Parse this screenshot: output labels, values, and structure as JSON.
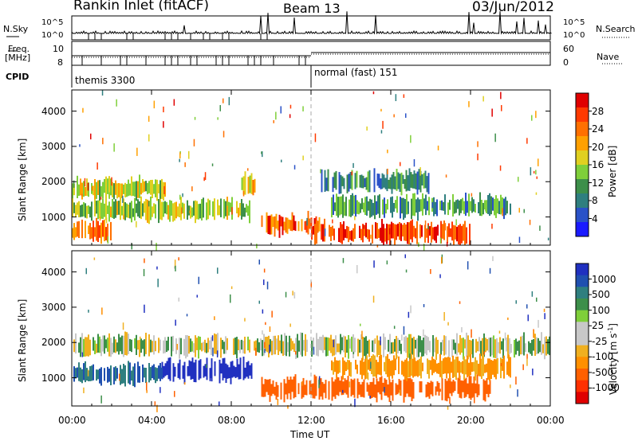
{
  "header": {
    "station_title": "Rankin Inlet (fitACF)",
    "beam": "Beam 13",
    "date": "03/Jun/2012"
  },
  "top_panels": {
    "nsky_label": "N.Sky",
    "nsky_ticks": [
      "10^5",
      "10^0"
    ],
    "nsearch_label": "N.Search",
    "nsearch_ticks": [
      "10^5",
      "10^0"
    ],
    "freq_label": "Freq.",
    "freq_unit": "[MHz]",
    "freq_ticks": [
      "10",
      "8"
    ],
    "nave_label": "Nave",
    "nave_ticks": [
      "60",
      "0"
    ],
    "cpid_label": "CPID",
    "cpid_segments": [
      {
        "name": "themis 3300",
        "start_hour": 0,
        "end_hour": 12
      },
      {
        "name": "normal (fast) 151",
        "start_hour": 12,
        "end_hour": 24
      }
    ]
  },
  "chart_data": [
    {
      "type": "heatmap",
      "panel": "power",
      "xlabel": "Time UT",
      "ylabel": "Slant Range [km]",
      "xlim": [
        0,
        24
      ],
      "ylim": [
        200,
        4600
      ],
      "x_ticks": [
        "00:00",
        "04:00",
        "08:00",
        "12:00",
        "16:00",
        "20:00",
        "00:00"
      ],
      "y_ticks": [
        "1000",
        "2000",
        "3000",
        "4000"
      ],
      "colorbar_label": "Power [dB]",
      "colorbar_ticks": [
        "4",
        "8",
        "12",
        "16",
        "20",
        "24",
        "28"
      ],
      "colorbar_colors": [
        "#1a1aff",
        "#2a52c8",
        "#2f7f7f",
        "#3d8f4a",
        "#7fcf3a",
        "#e0d020",
        "#ffa000",
        "#ff7000",
        "#ff3a00",
        "#e00000"
      ],
      "bands": [
        {
          "range_km": 1800,
          "start_hour": 0.0,
          "end_hour": 4.8,
          "level_db": 16
        },
        {
          "range_km": 1900,
          "start_hour": 8.5,
          "end_hour": 9.3,
          "level_db": 18
        },
        {
          "range_km": 1200,
          "start_hour": 0.0,
          "end_hour": 9.0,
          "level_db": 14
        },
        {
          "range_km": 600,
          "start_hour": 0.0,
          "end_hour": 2.0,
          "level_db": 22
        },
        {
          "range_km": 800,
          "start_hour": 9.5,
          "end_hour": 12.5,
          "level_db": 24
        },
        {
          "range_km": 550,
          "start_hour": 12.0,
          "end_hour": 20.0,
          "level_db": 26
        },
        {
          "range_km": 1300,
          "start_hour": 13.0,
          "end_hour": 22.0,
          "level_db": 10
        },
        {
          "range_km": 2000,
          "start_hour": 12.5,
          "end_hour": 18.0,
          "level_db": 8
        }
      ]
    },
    {
      "type": "heatmap",
      "panel": "velocity",
      "xlabel": "Time UT",
      "ylabel": "Slant Range [km]",
      "xlim": [
        0,
        24
      ],
      "ylim": [
        200,
        4600
      ],
      "x_ticks": [
        "00:00",
        "04:00",
        "08:00",
        "12:00",
        "16:00",
        "20:00",
        "00:00"
      ],
      "y_ticks": [
        "1000",
        "2000",
        "3000",
        "4000"
      ],
      "colorbar_label": "Velocity [m s",
      "colorbar_label_superscript": "-1",
      "colorbar_label_end": "]",
      "colorbar_ticks": [
        "1000",
        "500",
        "100",
        "25",
        "-25",
        "-100",
        "-500",
        "-1000"
      ],
      "colorbar_colors": [
        "#2030c0",
        "#2050b0",
        "#2f7f7f",
        "#3d8f4a",
        "#7fcf3a",
        "#c8c8c8",
        "#c8c8c8",
        "#f0b020",
        "#ff9000",
        "#ff6000",
        "#ff3000",
        "#e00000"
      ],
      "bands": [
        {
          "range_km": 1900,
          "start_hour": 0.0,
          "end_hour": 12.0,
          "velocity": 0
        },
        {
          "range_km": 1200,
          "start_hour": 4.5,
          "end_hour": 9.0,
          "velocity": 1000
        },
        {
          "range_km": 1100,
          "start_hour": 0.0,
          "end_hour": 4.5,
          "velocity": 300
        },
        {
          "range_km": 700,
          "start_hour": 9.5,
          "end_hour": 21.0,
          "velocity": -500
        },
        {
          "range_km": 1900,
          "start_hour": 12.0,
          "end_hour": 24.0,
          "velocity": 0
        },
        {
          "range_km": 1300,
          "start_hour": 13.0,
          "end_hour": 22.0,
          "velocity": -150
        }
      ]
    }
  ]
}
